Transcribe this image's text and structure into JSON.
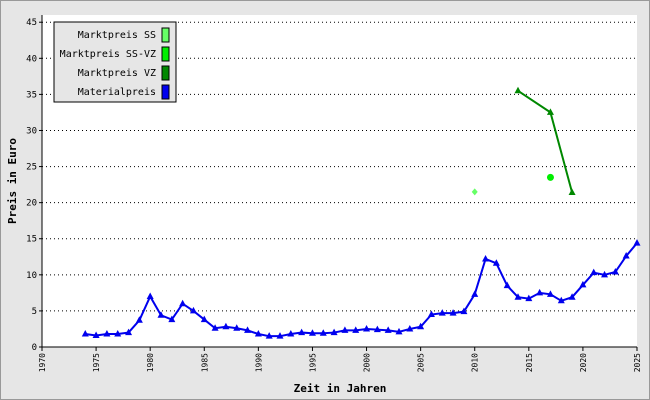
{
  "chart_data": {
    "type": "line",
    "xlabel": "Zeit in Jahren",
    "ylabel": "Preis in Euro",
    "xlim": [
      1970,
      2025
    ],
    "ylim": [
      0,
      46
    ],
    "xticks": [
      1970,
      1975,
      1980,
      1985,
      1990,
      1995,
      2000,
      2005,
      2010,
      2015,
      2020,
      2025
    ],
    "yticks": [
      0,
      5,
      10,
      15,
      20,
      25,
      30,
      35,
      40,
      45
    ],
    "grid": true,
    "legend": "upper left",
    "series": [
      {
        "name": "Marktpreis SS",
        "color": "#66ff66",
        "marker": "diamond",
        "x": [
          2010
        ],
        "values": [
          21.5
        ]
      },
      {
        "name": "Marktpreis SS-VZ",
        "color": "#00ee00",
        "marker": "circle",
        "x": [
          2017
        ],
        "values": [
          23.5
        ]
      },
      {
        "name": "Marktpreis VZ",
        "color": "#008800",
        "marker": "triangle",
        "x": [
          2014,
          2017,
          2019
        ],
        "values": [
          35.5,
          32.5,
          21.4
        ]
      },
      {
        "name": "Materialpreis",
        "color": "#0000ee",
        "marker": "triangle",
        "x": [
          1974,
          1975,
          1976,
          1977,
          1978,
          1979,
          1980,
          1981,
          1982,
          1983,
          1984,
          1985,
          1986,
          1987,
          1988,
          1989,
          1990,
          1991,
          1992,
          1993,
          1994,
          1995,
          1996,
          1997,
          1998,
          1999,
          2000,
          2001,
          2002,
          2003,
          2004,
          2005,
          2006,
          2007,
          2008,
          2009,
          2010,
          2011,
          2012,
          2013,
          2014,
          2015,
          2016,
          2017,
          2018,
          2019,
          2020,
          2021,
          2022,
          2023,
          2024,
          2025
        ],
        "values": [
          1.8,
          1.6,
          1.8,
          1.8,
          2.0,
          3.7,
          7.0,
          4.4,
          3.8,
          6.0,
          5.0,
          3.8,
          2.6,
          2.8,
          2.6,
          2.3,
          1.8,
          1.5,
          1.5,
          1.8,
          2.0,
          1.9,
          1.9,
          2.0,
          2.3,
          2.3,
          2.5,
          2.4,
          2.3,
          2.1,
          2.5,
          2.8,
          4.5,
          4.7,
          4.7,
          4.9,
          7.3,
          12.2,
          11.6,
          8.5,
          6.9,
          6.7,
          7.5,
          7.3,
          6.4,
          6.9,
          8.6,
          10.3,
          10.0,
          10.4,
          12.6,
          14.4
        ]
      }
    ]
  }
}
